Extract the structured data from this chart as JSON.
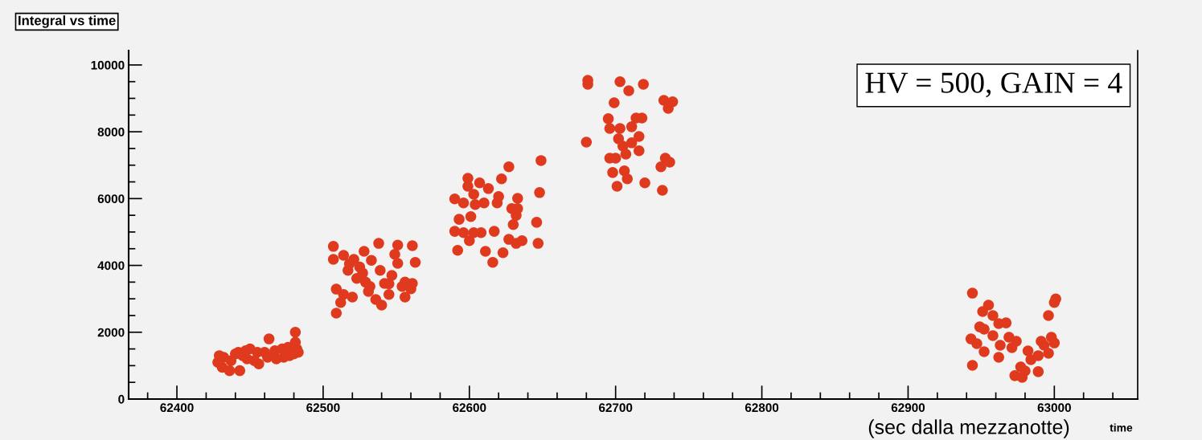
{
  "chart_data": {
    "type": "scatter",
    "title": "Integral vs time",
    "xlabel": "time",
    "annotations": [
      "HV = 500, GAIN = 4",
      "(sec dalla mezzanotte)"
    ],
    "xlim": [
      62367,
      63057
    ],
    "ylim": [
      0,
      10430
    ],
    "xticks": [
      62400,
      62500,
      62600,
      62700,
      62800,
      62900,
      63000
    ],
    "yticks": [
      0,
      2000,
      4000,
      6000,
      8000,
      10000
    ],
    "grid": false,
    "marker": "circle",
    "series": [
      {
        "color": "#e03a1e",
        "x": [
          62428,
          62429,
          62431,
          62432,
          62436,
          62437,
          62440,
          62442,
          62443,
          62445,
          62447,
          62448,
          62450,
          62453,
          62455,
          62456,
          62460,
          62462,
          62463,
          62467,
          62468,
          62472,
          62473,
          62476,
          62477,
          62481,
          62480,
          62481,
          62482,
          62483,
          62507,
          62507,
          62514,
          62538,
          62551,
          62561,
          62549,
          62563,
          62551,
          62528,
          62521,
          62517,
          62527,
          62539,
          62547,
          62509,
          62514,
          62520,
          62512,
          62509,
          62532,
          62531,
          62536,
          62540,
          62545,
          62554,
          62561,
          62556,
          62523,
          62542,
          62518,
          62525,
          62533,
          62529,
          62556,
          62560,
          62545,
          62590,
          62599,
          62599,
          62607,
          62613,
          62603,
          62596,
          62604,
          62610,
          62620,
          62619,
          62622,
          62627,
          62633,
          62633,
          62629,
          62632,
          62593,
          62601,
          62590,
          62596,
          62603,
          62608,
          62600,
          62617,
          62630,
          62627,
          62636,
          62632,
          62592,
          62611,
          62623,
          62616,
          62649,
          62648,
          62646,
          62647,
          62681,
          62681,
          62703,
          62719,
          62709,
          62699,
          62733,
          62739,
          62736,
          62695,
          62714,
          62718,
          62696,
          62703,
          62711,
          62716,
          62702,
          62705,
          62711,
          62716,
          62680,
          62696,
          62700,
          62734,
          62737,
          62731,
          62698,
          62706,
          62708,
          62701,
          62720,
          62732,
          62707,
          62944,
          63001,
          63000,
          62996,
          62955,
          62951,
          62958,
          62967,
          62962,
          62949,
          62952,
          62943,
          62947,
          62958,
          62969,
          62974,
          62963,
          62971,
          62952,
          62962,
          62982,
          62991,
          62998,
          62996,
          62989,
          62984,
          62977,
          62980,
          62973,
          62978,
          62989,
          62944,
          63000,
          62993
        ],
        "values": [
          1100,
          1300,
          950,
          1250,
          850,
          1150,
          1350,
          1400,
          850,
          1300,
          1450,
          1200,
          1500,
          1150,
          1400,
          1050,
          1400,
          1250,
          1800,
          1450,
          1200,
          1500,
          1250,
          1550,
          1300,
          2000,
          1350,
          1700,
          1500,
          1400,
          4570,
          4180,
          4300,
          4660,
          4610,
          4590,
          4330,
          4090,
          4060,
          4420,
          4180,
          3850,
          3770,
          3850,
          3700,
          3290,
          3130,
          3050,
          2890,
          2570,
          3370,
          3220,
          2980,
          2810,
          3130,
          3370,
          3460,
          3050,
          3610,
          3460,
          4050,
          3950,
          4150,
          3500,
          3500,
          3300,
          3450,
          5990,
          6610,
          6370,
          6470,
          6300,
          6130,
          5870,
          5820,
          5870,
          6060,
          5870,
          6590,
          6950,
          6010,
          5700,
          5700,
          5500,
          5380,
          5460,
          5020,
          4980,
          4980,
          4980,
          4740,
          5020,
          5220,
          4780,
          4740,
          4660,
          4450,
          4420,
          4380,
          4090,
          7140,
          6180,
          5290,
          4660,
          9540,
          9420,
          9500,
          9420,
          9230,
          8870,
          8940,
          8900,
          8700,
          8390,
          8410,
          8410,
          8100,
          8100,
          8150,
          7860,
          7790,
          7570,
          7670,
          7430,
          7690,
          7210,
          7210,
          7210,
          7090,
          6950,
          6780,
          6830,
          6590,
          6370,
          6470,
          6250,
          7330,
          3170,
          3000,
          2890,
          2500,
          2810,
          2620,
          2500,
          2280,
          2260,
          2160,
          2090,
          1800,
          1660,
          1900,
          1850,
          1730,
          1610,
          1540,
          1420,
          1250,
          1440,
          1730,
          1850,
          1370,
          1300,
          1180,
          960,
          840,
          700,
          650,
          820,
          1010,
          1680,
          1610
        ]
      }
    ]
  }
}
